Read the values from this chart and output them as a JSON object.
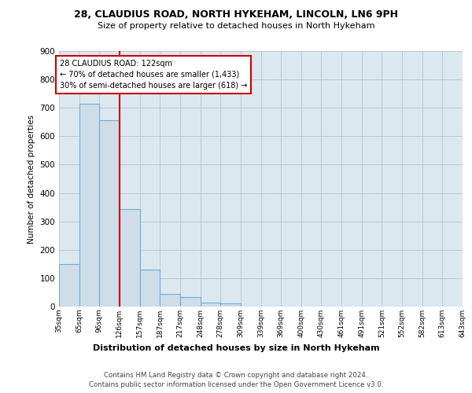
{
  "title1": "28, CLAUDIUS ROAD, NORTH HYKEHAM, LINCOLN, LN6 9PH",
  "title2": "Size of property relative to detached houses in North Hykeham",
  "xlabel": "Distribution of detached houses by size in North Hykeham",
  "ylabel": "Number of detached properties",
  "bin_labels": [
    "35sqm",
    "65sqm",
    "96sqm",
    "126sqm",
    "157sqm",
    "187sqm",
    "217sqm",
    "248sqm",
    "278sqm",
    "309sqm",
    "339sqm",
    "369sqm",
    "400sqm",
    "430sqm",
    "461sqm",
    "491sqm",
    "521sqm",
    "552sqm",
    "582sqm",
    "613sqm",
    "643sqm"
  ],
  "bar_heights": [
    150,
    715,
    655,
    343,
    130,
    43,
    33,
    13,
    10,
    0,
    0,
    0,
    0,
    0,
    0,
    0,
    0,
    0,
    0,
    0
  ],
  "bar_color": "#cfdde9",
  "bar_edge_color": "#6aaed6",
  "grid_color": "#b8c8d8",
  "vline_x": 3.0,
  "vline_color": "#cc0000",
  "annotation_text": "28 CLAUDIUS ROAD: 122sqm\n← 70% of detached houses are smaller (1,433)\n30% of semi-detached houses are larger (618) →",
  "annotation_box_color": "white",
  "annotation_box_edge": "#cc0000",
  "ylim": [
    0,
    900
  ],
  "yticks": [
    0,
    100,
    200,
    300,
    400,
    500,
    600,
    700,
    800,
    900
  ],
  "footer1": "Contains HM Land Registry data © Crown copyright and database right 2024.",
  "footer2": "Contains public sector information licensed under the Open Government Licence v3.0.",
  "bg_color": "#dce8f0",
  "fig_bg_color": "#ffffff"
}
